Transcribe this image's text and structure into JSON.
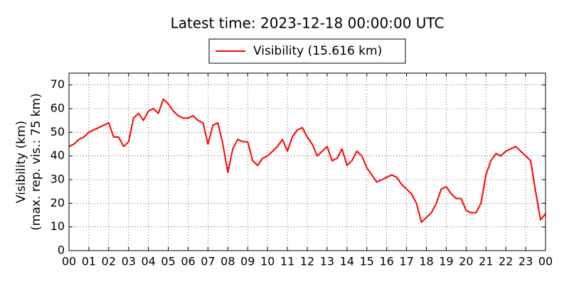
{
  "chart_data": {
    "type": "line",
    "title": "Latest time: 2023-12-18 00:00:00 UTC",
    "ylabel": [
      "Visibility (km)",
      "(max. rep. vis.: 75 km)"
    ],
    "x": [
      0,
      0.25,
      0.5,
      0.75,
      1,
      1.25,
      1.5,
      1.75,
      2,
      2.25,
      2.5,
      2.75,
      3,
      3.25,
      3.5,
      3.75,
      4,
      4.25,
      4.5,
      4.75,
      5,
      5.25,
      5.5,
      5.75,
      6,
      6.25,
      6.5,
      6.75,
      7,
      7.25,
      7.5,
      7.75,
      8,
      8.25,
      8.5,
      8.75,
      9,
      9.25,
      9.5,
      9.75,
      10,
      10.25,
      10.5,
      10.75,
      11,
      11.25,
      11.5,
      11.75,
      12,
      12.25,
      12.5,
      12.75,
      13,
      13.25,
      13.5,
      13.75,
      14,
      14.25,
      14.5,
      14.75,
      15,
      15.25,
      15.5,
      15.75,
      16,
      16.25,
      16.5,
      16.75,
      17,
      17.25,
      17.5,
      17.75,
      18,
      18.25,
      18.5,
      18.75,
      19,
      19.25,
      19.5,
      19.75,
      20,
      20.25,
      20.5,
      20.75,
      21,
      21.25,
      21.5,
      21.75,
      22,
      22.25,
      22.5,
      22.75,
      23,
      23.25,
      23.5,
      23.75,
      24
    ],
    "series": [
      {
        "name": "Visibility (15.616 km)",
        "color": "#ff0000",
        "values": [
          44,
          45,
          47,
          48,
          50,
          51,
          52,
          53,
          54,
          48,
          48,
          44,
          46,
          56,
          58,
          55,
          59,
          60,
          58,
          64,
          62,
          59,
          57,
          56,
          56,
          57,
          55,
          54,
          45,
          53,
          54,
          45,
          33,
          43,
          47,
          46,
          46,
          38,
          36,
          39,
          40,
          42,
          44,
          47,
          42,
          48,
          51,
          52,
          48,
          45,
          40,
          42,
          44,
          38,
          39,
          43,
          36,
          38,
          42,
          40,
          35,
          32,
          29,
          30,
          31,
          32,
          31,
          28,
          26,
          24,
          20,
          12,
          14,
          16,
          20,
          26,
          27,
          24,
          22,
          22,
          17,
          16,
          16,
          20,
          32,
          38,
          41,
          40,
          42,
          43,
          44,
          42,
          40,
          38,
          25,
          13,
          15.616
        ]
      }
    ],
    "xlim": [
      0,
      24
    ],
    "xticks": [
      {
        "value": 0,
        "label": "00"
      },
      {
        "value": 1,
        "label": "01"
      },
      {
        "value": 2,
        "label": "02"
      },
      {
        "value": 3,
        "label": "03"
      },
      {
        "value": 4,
        "label": "04"
      },
      {
        "value": 5,
        "label": "05"
      },
      {
        "value": 6,
        "label": "06"
      },
      {
        "value": 7,
        "label": "07"
      },
      {
        "value": 8,
        "label": "08"
      },
      {
        "value": 9,
        "label": "09"
      },
      {
        "value": 10,
        "label": "10"
      },
      {
        "value": 11,
        "label": "11"
      },
      {
        "value": 12,
        "label": "12"
      },
      {
        "value": 13,
        "label": "13"
      },
      {
        "value": 14,
        "label": "14"
      },
      {
        "value": 15,
        "label": "15"
      },
      {
        "value": 16,
        "label": "16"
      },
      {
        "value": 17,
        "label": "17"
      },
      {
        "value": 18,
        "label": "18"
      },
      {
        "value": 19,
        "label": "19"
      },
      {
        "value": 20,
        "label": "20"
      },
      {
        "value": 21,
        "label": "21"
      },
      {
        "value": 22,
        "label": "22"
      },
      {
        "value": 23,
        "label": "23"
      },
      {
        "value": 24,
        "label": "00"
      }
    ],
    "ylim": [
      0,
      75
    ],
    "yticks": [
      0,
      10,
      20,
      30,
      40,
      50,
      60,
      70
    ],
    "grid": true
  }
}
